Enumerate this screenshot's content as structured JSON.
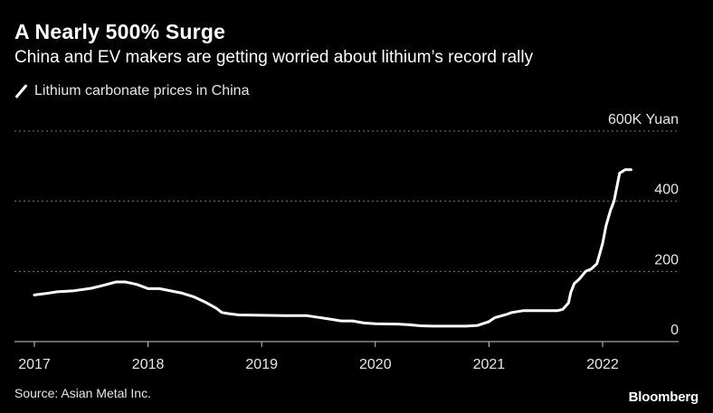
{
  "title": "A Nearly 500% Surge",
  "subtitle": "China and EV makers are getting worried about lithium’s record rally",
  "source": "Source: Asian Metal Inc.",
  "brand": "Bloomberg",
  "colors": {
    "background": "#000000",
    "line": "#ffffff",
    "grid": "#777777",
    "text": "#e6e6e6"
  },
  "chart_data": {
    "type": "line",
    "title": "A Nearly 500% Surge",
    "subtitle": "China and EV makers are getting worried about lithium’s record rally",
    "xlabel": "",
    "ylabel": "",
    "ylim": [
      0,
      600
    ],
    "xlim": [
      2017,
      2022.6
    ],
    "y_unit_label": "600K Yuan",
    "y_ticks": [
      {
        "value": 0,
        "label": "0"
      },
      {
        "value": 200,
        "label": "200"
      },
      {
        "value": 400,
        "label": "400"
      },
      {
        "value": 600,
        "label": "600K Yuan"
      }
    ],
    "x_ticks": [
      {
        "value": 2017,
        "label": "2017"
      },
      {
        "value": 2018,
        "label": "2018"
      },
      {
        "value": 2019,
        "label": "2019"
      },
      {
        "value": 2020,
        "label": "2020"
      },
      {
        "value": 2021,
        "label": "2021"
      },
      {
        "value": 2022,
        "label": "2022"
      }
    ],
    "grid": true,
    "legend_position": "top-left",
    "series": [
      {
        "name": "Lithium carbonate prices in China",
        "x": [
          2017.0,
          2017.1,
          2017.2,
          2017.35,
          2017.5,
          2017.6,
          2017.72,
          2017.8,
          2017.9,
          2018.0,
          2018.1,
          2018.3,
          2018.4,
          2018.5,
          2018.6,
          2018.65,
          2018.7,
          2018.8,
          2019.0,
          2019.2,
          2019.4,
          2019.5,
          2019.6,
          2019.7,
          2019.8,
          2019.9,
          2020.0,
          2020.2,
          2020.3,
          2020.4,
          2020.5,
          2020.6,
          2020.7,
          2020.8,
          2020.9,
          2021.0,
          2021.05,
          2021.15,
          2021.2,
          2021.3,
          2021.5,
          2021.6,
          2021.65,
          2021.7,
          2021.72,
          2021.75,
          2021.8,
          2021.85,
          2021.9,
          2021.95,
          2022.0,
          2022.03,
          2022.07,
          2022.1,
          2022.15,
          2022.2,
          2022.25
        ],
        "values": [
          133,
          137,
          142,
          145,
          152,
          160,
          170,
          170,
          163,
          151,
          151,
          138,
          128,
          113,
          95,
          83,
          80,
          76,
          75,
          74,
          74,
          69,
          64,
          59,
          59,
          53,
          51,
          50,
          48,
          45,
          44,
          44,
          44,
          44,
          46,
          57,
          68,
          77,
          83,
          88,
          88,
          88,
          92,
          110,
          140,
          165,
          180,
          200,
          207,
          222,
          280,
          330,
          375,
          400,
          480,
          490,
          490
        ]
      }
    ]
  }
}
